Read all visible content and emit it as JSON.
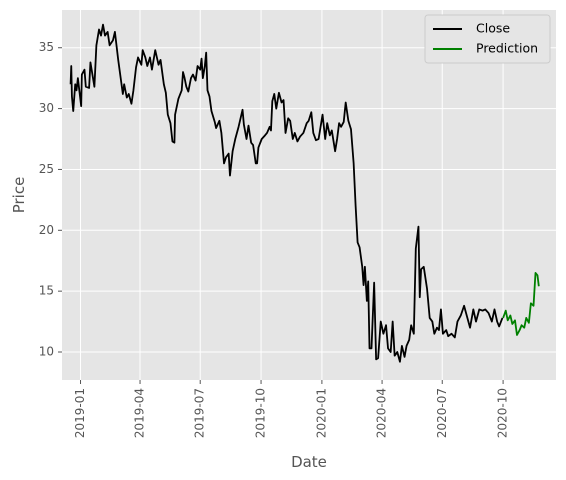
{
  "chart_data": {
    "type": "line",
    "xlabel": "Date",
    "ylabel": "Price",
    "x_ticks": [
      "2019-01",
      "2019-04",
      "2019-07",
      "2019-10",
      "2020-01",
      "2020-04",
      "2020-07",
      "2020-10"
    ],
    "y_ticks": [
      10,
      15,
      20,
      25,
      30,
      35
    ],
    "xlim": [
      "2018-12-04",
      "2020-12-20"
    ],
    "ylim": [
      7.7,
      38.1
    ],
    "grid": true,
    "legend_position": "top-right",
    "series": [
      {
        "name": "Close",
        "color": "#000000",
        "points": [
          [
            "2018-12-17",
            32.0
          ],
          [
            "2018-12-18",
            33.5
          ],
          [
            "2018-12-19",
            31.0
          ],
          [
            "2018-12-21",
            29.8
          ],
          [
            "2018-12-24",
            32.0
          ],
          [
            "2018-12-26",
            31.5
          ],
          [
            "2018-12-28",
            32.5
          ],
          [
            "2019-01-02",
            30.2
          ],
          [
            "2019-01-03",
            32.8
          ],
          [
            "2019-01-07",
            33.2
          ],
          [
            "2019-01-09",
            31.8
          ],
          [
            "2019-01-14",
            31.7
          ],
          [
            "2019-01-16",
            33.8
          ],
          [
            "2019-01-22",
            31.8
          ],
          [
            "2019-01-25",
            35.2
          ],
          [
            "2019-01-29",
            36.5
          ],
          [
            "2019-02-01",
            36.0
          ],
          [
            "2019-02-04",
            36.9
          ],
          [
            "2019-02-07",
            36.0
          ],
          [
            "2019-02-11",
            36.3
          ],
          [
            "2019-02-14",
            35.2
          ],
          [
            "2019-02-19",
            35.6
          ],
          [
            "2019-02-22",
            36.3
          ],
          [
            "2019-02-27",
            34.0
          ],
          [
            "2019-03-04",
            32.0
          ],
          [
            "2019-03-06",
            31.2
          ],
          [
            "2019-03-08",
            32.0
          ],
          [
            "2019-03-12",
            30.9
          ],
          [
            "2019-03-15",
            31.2
          ],
          [
            "2019-03-19",
            30.4
          ],
          [
            "2019-03-22",
            31.5
          ],
          [
            "2019-03-26",
            33.4
          ],
          [
            "2019-03-29",
            34.2
          ],
          [
            "2019-04-03",
            33.6
          ],
          [
            "2019-04-05",
            34.8
          ],
          [
            "2019-04-09",
            34.2
          ],
          [
            "2019-04-12",
            33.5
          ],
          [
            "2019-04-16",
            34.2
          ],
          [
            "2019-04-19",
            33.2
          ],
          [
            "2019-04-24",
            34.8
          ],
          [
            "2019-04-29",
            33.6
          ],
          [
            "2019-05-02",
            34.0
          ],
          [
            "2019-05-07",
            32.0
          ],
          [
            "2019-05-10",
            31.3
          ],
          [
            "2019-05-13",
            29.5
          ],
          [
            "2019-05-17",
            28.8
          ],
          [
            "2019-05-20",
            27.3
          ],
          [
            "2019-05-23",
            27.2
          ],
          [
            "2019-05-24",
            29.5
          ],
          [
            "2019-05-29",
            30.8
          ],
          [
            "2019-06-03",
            31.5
          ],
          [
            "2019-06-05",
            33.0
          ],
          [
            "2019-06-07",
            32.6
          ],
          [
            "2019-06-10",
            31.8
          ],
          [
            "2019-06-13",
            31.4
          ],
          [
            "2019-06-17",
            32.5
          ],
          [
            "2019-06-20",
            32.8
          ],
          [
            "2019-06-24",
            32.3
          ],
          [
            "2019-06-27",
            33.5
          ],
          [
            "2019-07-01",
            33.2
          ],
          [
            "2019-07-03",
            34.1
          ],
          [
            "2019-07-05",
            32.5
          ],
          [
            "2019-07-08",
            33.5
          ],
          [
            "2019-07-10",
            34.6
          ],
          [
            "2019-07-12",
            31.5
          ],
          [
            "2019-07-15",
            31.0
          ],
          [
            "2019-07-18",
            29.8
          ],
          [
            "2019-07-23",
            28.9
          ],
          [
            "2019-07-25",
            28.4
          ],
          [
            "2019-07-30",
            29.0
          ],
          [
            "2019-08-02",
            28.0
          ],
          [
            "2019-08-06",
            25.5
          ],
          [
            "2019-08-09",
            26.0
          ],
          [
            "2019-08-13",
            26.3
          ],
          [
            "2019-08-15",
            24.5
          ],
          [
            "2019-08-19",
            26.5
          ],
          [
            "2019-08-23",
            27.5
          ],
          [
            "2019-08-28",
            28.5
          ],
          [
            "2019-09-03",
            29.9
          ],
          [
            "2019-09-05",
            28.7
          ],
          [
            "2019-09-09",
            27.5
          ],
          [
            "2019-09-12",
            28.6
          ],
          [
            "2019-09-16",
            27.2
          ],
          [
            "2019-09-19",
            27.0
          ],
          [
            "2019-09-23",
            25.5
          ],
          [
            "2019-09-25",
            25.5
          ],
          [
            "2019-09-27",
            26.8
          ],
          [
            "2019-10-02",
            27.5
          ],
          [
            "2019-10-07",
            27.8
          ],
          [
            "2019-10-10",
            28.0
          ],
          [
            "2019-10-14",
            28.5
          ],
          [
            "2019-10-16",
            28.2
          ],
          [
            "2019-10-18",
            30.6
          ],
          [
            "2019-10-21",
            31.2
          ],
          [
            "2019-10-24",
            30.0
          ],
          [
            "2019-10-28",
            31.3
          ],
          [
            "2019-11-01",
            30.5
          ],
          [
            "2019-11-04",
            30.7
          ],
          [
            "2019-11-07",
            28.0
          ],
          [
            "2019-11-11",
            29.2
          ],
          [
            "2019-11-14",
            29.0
          ],
          [
            "2019-11-18",
            27.5
          ],
          [
            "2019-11-21",
            28.0
          ],
          [
            "2019-11-25",
            27.3
          ],
          [
            "2019-11-29",
            27.7
          ],
          [
            "2019-12-04",
            28.0
          ],
          [
            "2019-12-09",
            28.8
          ],
          [
            "2019-12-12",
            29.0
          ],
          [
            "2019-12-16",
            29.7
          ],
          [
            "2019-12-19",
            28.0
          ],
          [
            "2019-12-23",
            27.4
          ],
          [
            "2019-12-27",
            27.5
          ],
          [
            "2020-01-02",
            29.5
          ],
          [
            "2020-01-06",
            27.5
          ],
          [
            "2020-01-09",
            28.8
          ],
          [
            "2020-01-13",
            27.8
          ],
          [
            "2020-01-16",
            28.2
          ],
          [
            "2020-01-21",
            26.5
          ],
          [
            "2020-01-24",
            27.5
          ],
          [
            "2020-01-27",
            28.8
          ],
          [
            "2020-01-30",
            28.5
          ],
          [
            "2020-02-03",
            28.9
          ],
          [
            "2020-02-06",
            30.5
          ],
          [
            "2020-02-10",
            29.0
          ],
          [
            "2020-02-14",
            28.3
          ],
          [
            "2020-02-18",
            25.5
          ],
          [
            "2020-02-21",
            22.0
          ],
          [
            "2020-02-24",
            19.0
          ],
          [
            "2020-02-27",
            18.6
          ],
          [
            "2020-03-02",
            17.0
          ],
          [
            "2020-03-04",
            15.5
          ],
          [
            "2020-03-06",
            17.0
          ],
          [
            "2020-03-09",
            14.2
          ],
          [
            "2020-03-11",
            15.8
          ],
          [
            "2020-03-13",
            10.3
          ],
          [
            "2020-03-16",
            10.3
          ],
          [
            "2020-03-18",
            13.0
          ],
          [
            "2020-03-20",
            15.7
          ],
          [
            "2020-03-23",
            9.4
          ],
          [
            "2020-03-26",
            9.5
          ],
          [
            "2020-03-30",
            12.5
          ],
          [
            "2020-04-03",
            11.5
          ],
          [
            "2020-04-07",
            12.2
          ],
          [
            "2020-04-10",
            10.3
          ],
          [
            "2020-04-14",
            10.0
          ],
          [
            "2020-04-17",
            12.5
          ],
          [
            "2020-04-20",
            9.7
          ],
          [
            "2020-04-24",
            10.0
          ],
          [
            "2020-04-28",
            9.2
          ],
          [
            "2020-05-01",
            10.5
          ],
          [
            "2020-05-05",
            9.6
          ],
          [
            "2020-05-08",
            10.5
          ],
          [
            "2020-05-12",
            11.0
          ],
          [
            "2020-05-15",
            12.2
          ],
          [
            "2020-05-19",
            11.5
          ],
          [
            "2020-05-22",
            18.5
          ],
          [
            "2020-05-26",
            20.3
          ],
          [
            "2020-05-28",
            14.5
          ],
          [
            "2020-05-30",
            16.8
          ],
          [
            "2020-06-03",
            17.0
          ],
          [
            "2020-06-08",
            15.2
          ],
          [
            "2020-06-12",
            12.8
          ],
          [
            "2020-06-16",
            12.5
          ],
          [
            "2020-06-19",
            11.5
          ],
          [
            "2020-06-23",
            12.0
          ],
          [
            "2020-06-26",
            11.8
          ],
          [
            "2020-06-29",
            13.5
          ],
          [
            "2020-07-02",
            11.5
          ],
          [
            "2020-07-07",
            11.8
          ],
          [
            "2020-07-10",
            11.3
          ],
          [
            "2020-07-15",
            11.5
          ],
          [
            "2020-07-20",
            11.2
          ],
          [
            "2020-07-24",
            12.5
          ],
          [
            "2020-07-29",
            13.0
          ],
          [
            "2020-08-03",
            13.8
          ],
          [
            "2020-08-07",
            13.0
          ],
          [
            "2020-08-12",
            12.0
          ],
          [
            "2020-08-17",
            13.5
          ],
          [
            "2020-08-21",
            12.5
          ],
          [
            "2020-08-26",
            13.5
          ],
          [
            "2020-08-31",
            13.4
          ],
          [
            "2020-09-04",
            13.5
          ],
          [
            "2020-09-09",
            13.2
          ],
          [
            "2020-09-14",
            12.5
          ],
          [
            "2020-09-18",
            13.5
          ],
          [
            "2020-09-22",
            12.5
          ],
          [
            "2020-09-25",
            12.1
          ],
          [
            "2020-09-30",
            12.8
          ]
        ]
      },
      {
        "name": "Prediction",
        "color": "#008000",
        "points": [
          [
            "2020-10-01",
            12.8
          ],
          [
            "2020-10-05",
            13.4
          ],
          [
            "2020-10-08",
            12.6
          ],
          [
            "2020-10-12",
            13.0
          ],
          [
            "2020-10-15",
            12.3
          ],
          [
            "2020-10-19",
            12.6
          ],
          [
            "2020-10-22",
            11.4
          ],
          [
            "2020-10-26",
            11.8
          ],
          [
            "2020-10-29",
            12.2
          ],
          [
            "2020-11-02",
            12.0
          ],
          [
            "2020-11-05",
            12.8
          ],
          [
            "2020-11-09",
            12.4
          ],
          [
            "2020-11-12",
            14.0
          ],
          [
            "2020-11-16",
            13.8
          ],
          [
            "2020-11-19",
            16.5
          ],
          [
            "2020-11-22",
            16.3
          ],
          [
            "2020-11-24",
            15.4
          ]
        ]
      }
    ]
  }
}
